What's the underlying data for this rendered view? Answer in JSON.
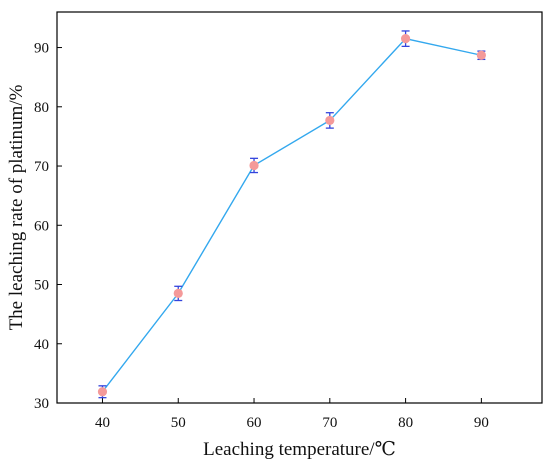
{
  "chart_data": {
    "type": "line",
    "xlabel": "Leaching temperature/℃",
    "ylabel": "The leaching rate of platinum/%",
    "xlim": [
      34,
      98
    ],
    "ylim": [
      30,
      96
    ],
    "x_ticks": [
      40,
      50,
      60,
      70,
      80,
      90
    ],
    "y_ticks": [
      30,
      40,
      50,
      60,
      70,
      80,
      90
    ],
    "grid": false,
    "legend": "none",
    "series": [
      {
        "x": [
          40,
          50,
          60,
          70,
          80,
          90
        ],
        "y": [
          31.9,
          48.5,
          70.1,
          77.7,
          91.5,
          88.7
        ],
        "error": [
          1.0,
          1.2,
          1.2,
          1.3,
          1.3,
          0.7
        ],
        "line_color": "#33a8ee",
        "marker_color": "#f49a9a",
        "error_color": "#3344dd"
      }
    ]
  }
}
